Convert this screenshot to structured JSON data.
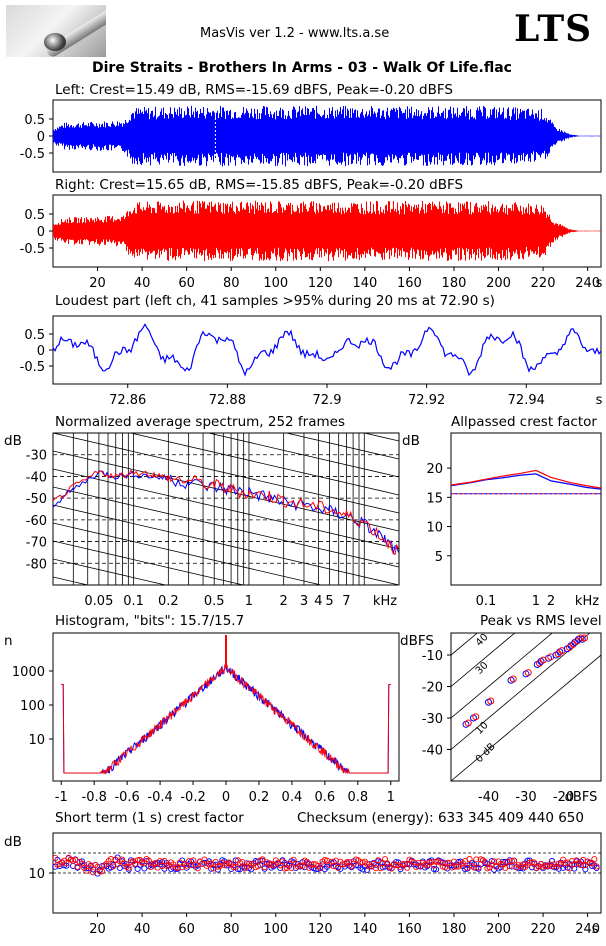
{
  "header": {
    "app_title": "MasVis ver 1.2 - www.lts.a.se",
    "brand": "LTS",
    "file_title": "Dire Straits - Brothers In Arms - 03 - Walk Of Life.flac"
  },
  "colors": {
    "left": "#0000ff",
    "right": "#ff0000",
    "grid": "#000000"
  },
  "panels": {
    "left_waveform": {
      "label": "Left: Crest=15.49 dB, RMS=-15.69 dBFS, Peak=-0.20 dBFS"
    },
    "right_waveform": {
      "label": "Right: Crest=15.65 dB, RMS=-15.85 dBFS, Peak=-0.20 dBFS"
    },
    "loudest": {
      "label": "Loudest part (left  ch, 41 samples >95% during 20 ms at 72.90 s)"
    },
    "spectrum": {
      "label": "Normalized average spectrum, 252 frames",
      "ylabel": "dB"
    },
    "allpass": {
      "label": "Allpassed crest factor",
      "ylabel": "dB"
    },
    "histogram": {
      "label": "Histogram, \"bits\": 15.7/15.7",
      "ylabel": "n"
    },
    "peak_rms": {
      "label": "Peak vs RMS level",
      "ylabel": "dBFS"
    },
    "short_term": {
      "label": "Short term (1 s) crest factor",
      "ylabel": "dB",
      "checksum": "Checksum (energy):   633 345 409 440 650"
    }
  },
  "chart_data": [
    {
      "type": "area",
      "name": "left-waveform",
      "y_ticks": [
        "0.5",
        "0",
        "-0.5"
      ],
      "ylim": [
        -1,
        1
      ],
      "xlim": [
        0,
        246
      ],
      "envelope": [
        [
          0,
          0.25
        ],
        [
          5,
          0.4
        ],
        [
          25,
          0.45
        ],
        [
          32,
          0.5
        ],
        [
          35,
          0.85
        ],
        [
          60,
          0.9
        ],
        [
          200,
          0.88
        ],
        [
          220,
          0.8
        ],
        [
          225,
          0.3
        ],
        [
          232,
          0.05
        ],
        [
          236,
          0.01
        ],
        [
          246,
          0.01
        ]
      ],
      "marker_x": 72.9
    },
    {
      "type": "area",
      "name": "right-waveform",
      "y_ticks": [
        "0.5",
        "0",
        "-0.5"
      ],
      "ylim": [
        -1,
        1
      ],
      "xlim": [
        0,
        246
      ],
      "envelope": [
        [
          0,
          0.25
        ],
        [
          5,
          0.4
        ],
        [
          25,
          0.45
        ],
        [
          32,
          0.5
        ],
        [
          35,
          0.85
        ],
        [
          60,
          0.9
        ],
        [
          200,
          0.88
        ],
        [
          220,
          0.8
        ],
        [
          225,
          0.3
        ],
        [
          232,
          0.05
        ],
        [
          236,
          0.01
        ],
        [
          246,
          0.01
        ]
      ],
      "x_ticks": [
        "20",
        "40",
        "60",
        "80",
        "100",
        "120",
        "140",
        "160",
        "180",
        "200",
        "220",
        "240"
      ],
      "x_unit": "s"
    },
    {
      "type": "line",
      "name": "loudest-part",
      "y_ticks": [
        "0.5",
        "0",
        "-0.5"
      ],
      "ylim": [
        -1,
        1
      ],
      "xlim": [
        72.845,
        72.955
      ],
      "x_ticks": [
        "72.86",
        "72.88",
        "72.9",
        "72.92",
        "72.94"
      ],
      "x_unit": "s"
    },
    {
      "type": "line",
      "name": "average-spectrum",
      "y_ticks": [
        "-30",
        "-40",
        "-50",
        "-60",
        "-70",
        "-80"
      ],
      "ylim": [
        -90,
        -20
      ],
      "x_ticks": [
        "0.05",
        "0.1",
        "0.2",
        "0.5",
        "1",
        "2",
        "3",
        "4",
        "5",
        "7"
      ],
      "x_unit": "kHz",
      "xlim_khz": [
        0.02,
        20
      ],
      "series": [
        {
          "channel": "left",
          "x_khz": [
            0.02,
            0.03,
            0.05,
            0.07,
            0.1,
            0.15,
            0.2,
            0.3,
            0.5,
            0.7,
            1,
            1.5,
            2,
            3,
            5,
            7,
            10,
            15,
            20
          ],
          "y": [
            -53,
            -46,
            -38,
            -40,
            -39,
            -40,
            -41,
            -43,
            -45,
            -46,
            -47,
            -50,
            -52,
            -53,
            -56,
            -58,
            -62,
            -69,
            -76
          ]
        },
        {
          "channel": "right",
          "x_khz": [
            0.02,
            0.03,
            0.05,
            0.07,
            0.1,
            0.15,
            0.2,
            0.3,
            0.5,
            0.7,
            1,
            1.5,
            2,
            3,
            5,
            7,
            10,
            15,
            20
          ],
          "y": [
            -52,
            -45,
            -38,
            -40,
            -38,
            -39,
            -41,
            -42,
            -44,
            -46,
            -48,
            -49,
            -51,
            -53,
            -55,
            -58,
            -61,
            -69,
            -75
          ]
        }
      ]
    },
    {
      "type": "line",
      "name": "allpassed-crest-factor",
      "y_ticks": [
        "20",
        "15",
        "10",
        "5"
      ],
      "ylim": [
        0,
        26
      ],
      "x_ticks": [
        "0.1",
        "1",
        "2",
        "kHz"
      ],
      "xlim_khz": [
        0.02,
        20
      ],
      "series": [
        {
          "channel": "left",
          "x_khz": [
            0.02,
            0.05,
            0.1,
            0.2,
            0.5,
            1,
            2,
            5,
            10,
            20
          ],
          "y": [
            17,
            17.5,
            18,
            18.3,
            18.8,
            19,
            17.8,
            17.2,
            16.7,
            16.4
          ]
        },
        {
          "channel": "right",
          "x_khz": [
            0.02,
            0.05,
            0.1,
            0.2,
            0.5,
            1,
            2,
            5,
            10,
            20
          ],
          "y": [
            17.1,
            17.6,
            18.1,
            18.6,
            19.1,
            19.6,
            18.4,
            17.5,
            17,
            16.6
          ]
        }
      ],
      "reference_level": 15.6
    },
    {
      "type": "line",
      "name": "histogram",
      "y_ticks": [
        "1000",
        "100",
        "10"
      ],
      "yscale": "log",
      "x_ticks": [
        "-1",
        "-0.8",
        "-0.6",
        "-0.4",
        "-0.2",
        "0",
        "0.2",
        "0.4",
        "0.6",
        "0.8",
        "1"
      ],
      "xlim": [
        -1.05,
        1.05
      ],
      "x": [
        -1,
        -0.95,
        -0.8,
        -0.6,
        -0.4,
        -0.2,
        0,
        0.2,
        0.4,
        0.6,
        0.8,
        0.95,
        1
      ],
      "y": [
        200,
        4,
        6,
        20,
        60,
        200,
        1300,
        200,
        60,
        20,
        6,
        4,
        200
      ]
    },
    {
      "type": "scatter",
      "name": "peak-vs-rms",
      "y_ticks": [
        "-10",
        "-20",
        "-30",
        "-40"
      ],
      "x_ticks": [
        "-40",
        "-30",
        "-20",
        "dBFS"
      ],
      "xlim": [
        -50,
        -10
      ],
      "ylim": [
        -50,
        -3
      ],
      "diagonal_labels": [
        "40",
        "30",
        "10",
        "0 dB"
      ],
      "points": [
        [
          -46,
          -32
        ],
        [
          -44,
          -30
        ],
        [
          -40,
          -25
        ],
        [
          -34,
          -18
        ],
        [
          -30,
          -16
        ],
        [
          -27,
          -13
        ],
        [
          -24,
          -11
        ],
        [
          -21,
          -9
        ],
        [
          -18,
          -7
        ],
        [
          -17,
          -6
        ],
        [
          -16,
          -5
        ],
        [
          -15,
          -5
        ],
        [
          -19,
          -8
        ],
        [
          -22,
          -10
        ],
        [
          -26,
          -12
        ]
      ]
    },
    {
      "type": "scatter",
      "name": "short-term-crest",
      "y_ticks": [
        "10"
      ],
      "ylim": [
        0,
        20
      ],
      "xlim": [
        0,
        246
      ],
      "x_ticks": [
        "20",
        "40",
        "60",
        "80",
        "100",
        "120",
        "140",
        "160",
        "180",
        "200",
        "220",
        "240"
      ],
      "x_unit": "s",
      "reference_lines": [
        10,
        15
      ],
      "series": [
        {
          "channel": "left",
          "mean": 12
        },
        {
          "channel": "right",
          "mean": 12.3
        }
      ]
    }
  ]
}
